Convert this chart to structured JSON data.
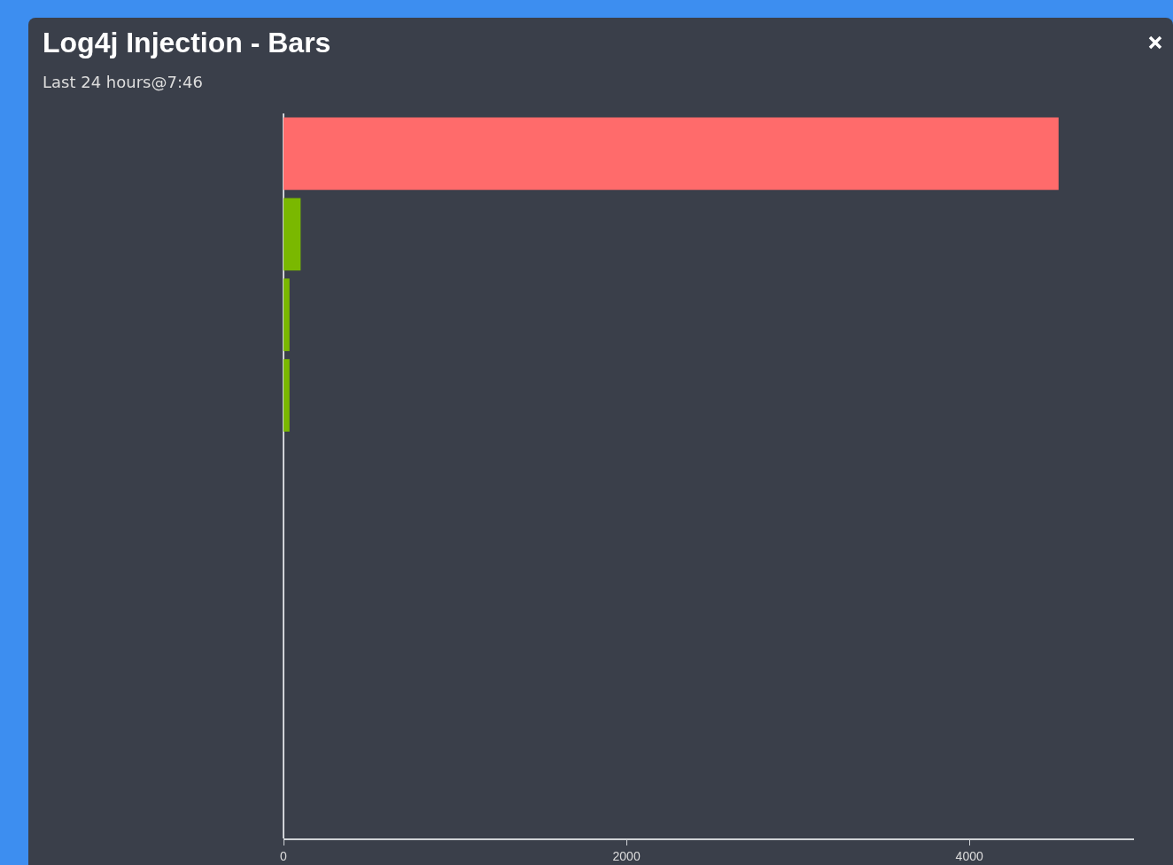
{
  "chart_data": {
    "type": "bar",
    "title": "Log4j Injection - Bars",
    "subtitle": "Last 24 hours@7:46",
    "orientation": "horizontal",
    "categories": [
      null,
      null,
      null,
      null,
      null,
      null,
      null,
      null,
      null
    ],
    "values": [
      4520,
      100,
      35,
      35,
      0,
      0,
      0,
      0,
      0
    ],
    "colors": [
      "#ff6b6b",
      "#7ab800",
      "#7ab800",
      "#7ab800",
      "#7ab800",
      "#7ab800",
      "#7ab800",
      "#7ab800",
      "#7ab800"
    ],
    "xlim": [
      0,
      4960
    ],
    "xticks": [
      0,
      2000,
      4000
    ]
  }
}
